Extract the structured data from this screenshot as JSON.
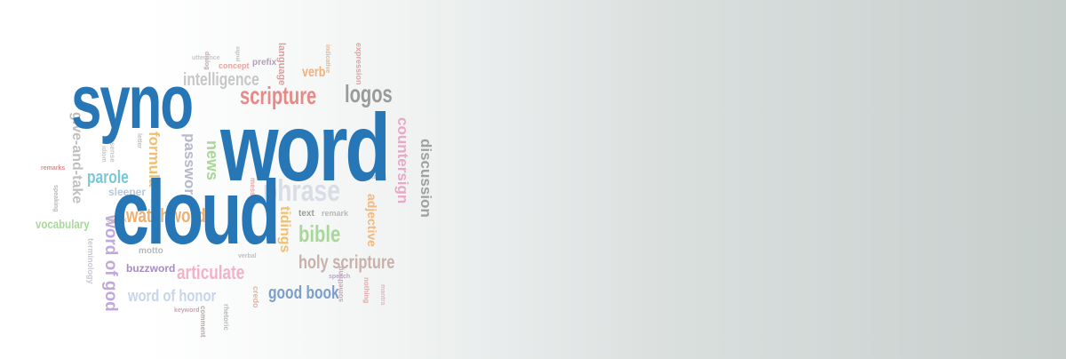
{
  "title": {
    "line1": "syno",
    "line2": "word",
    "line3": "cloud",
    "color": "#2776b5"
  },
  "cloud_words": [
    {
      "text": "scripture",
      "color": "#e58a87"
    },
    {
      "text": "logos",
      "color": "#9a9a9a"
    },
    {
      "text": "phrase",
      "color": "#d8dde6"
    },
    {
      "text": "holy scripture",
      "color": "#c7b1a8"
    },
    {
      "text": "articulate",
      "color": "#f2b3c6"
    },
    {
      "text": "word of honor",
      "color": "#c6d5ea"
    },
    {
      "text": "good book",
      "color": "#7c9ec7"
    },
    {
      "text": "bible",
      "color": "#a9d79a"
    },
    {
      "text": "parole",
      "color": "#79c8d8"
    },
    {
      "text": "vocabulary",
      "color": "#a8d89b"
    },
    {
      "text": "buzzword",
      "color": "#a68bc4"
    },
    {
      "text": "motto",
      "color": "#b8b8b8"
    },
    {
      "text": "text",
      "color": "#9a9a9a"
    },
    {
      "text": "remark",
      "color": "#b8b8b8"
    },
    {
      "text": "verb",
      "color": "#f0b080"
    },
    {
      "text": "concept",
      "color": "#e8a5a0"
    },
    {
      "text": "prefix",
      "color": "#b39ebb"
    },
    {
      "text": "language",
      "color": "#d4a0a0"
    },
    {
      "text": "expression",
      "color": "#e8a0a0"
    },
    {
      "text": "intelligence",
      "color": "#c7c7c7"
    },
    {
      "text": "countersign",
      "color": "#e8a8c8"
    },
    {
      "text": "discussion",
      "color": "#a0a0a0"
    },
    {
      "text": "adjective",
      "color": "#f2b880"
    },
    {
      "text": "tidings",
      "color": "#f0c070"
    },
    {
      "text": "news",
      "color": "#a9d79a"
    },
    {
      "text": "formula",
      "color": "#f0c070"
    },
    {
      "text": "password",
      "color": "#b8b8cc"
    },
    {
      "text": "give-and-take",
      "color": "#c0c0c0"
    },
    {
      "text": "word of god",
      "color": "#c0a8d8"
    },
    {
      "text": "watchword",
      "color": "#f0b070"
    },
    {
      "text": "terminology",
      "color": "#c8c8d8"
    },
    {
      "text": "remarks",
      "color": "#e88888"
    },
    {
      "text": "speaking",
      "color": "#b8b8b8"
    },
    {
      "text": "credo",
      "color": "#e8b0a0"
    },
    {
      "text": "something",
      "color": "#c8a8b8"
    },
    {
      "text": "rhetoric",
      "color": "#b8b8b8"
    },
    {
      "text": "comment",
      "color": "#b8a8a8"
    },
    {
      "text": "keyword",
      "color": "#c8a8b8"
    },
    {
      "text": "verbal",
      "color": "#c0c0c0"
    },
    {
      "text": "speech",
      "color": "#b8a8c8"
    },
    {
      "text": "talk",
      "color": "#c0c0c0"
    },
    {
      "text": "nothing",
      "color": "#e8a8a8"
    },
    {
      "text": "mantra",
      "color": "#d8b8c8"
    },
    {
      "text": "speak",
      "color": "#c0c0c0"
    },
    {
      "text": "sleeper",
      "color": "#b8c8d8"
    },
    {
      "text": "message",
      "color": "#e8a8a8"
    },
    {
      "text": "letter",
      "color": "#c0c0c0"
    },
    {
      "text": "sense",
      "color": "#c8c8c8"
    },
    {
      "text": "idiom",
      "color": "#c8c8c8"
    },
    {
      "text": "signal",
      "color": "#c0c0c0"
    },
    {
      "text": "indicative",
      "color": "#f0b880"
    },
    {
      "text": "dialog",
      "color": "#c8a8a8"
    },
    {
      "text": "utterance",
      "color": "#c8c8c8"
    }
  ]
}
